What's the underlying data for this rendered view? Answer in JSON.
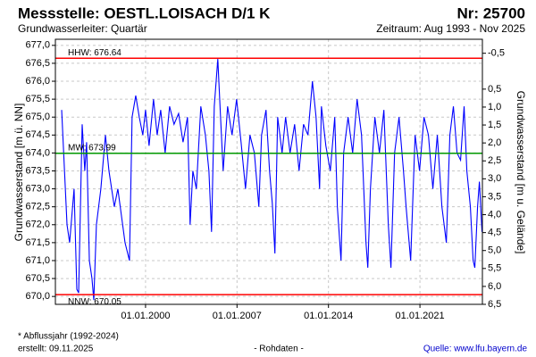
{
  "chart_data": {
    "type": "line",
    "title": "Messstelle: OESTL.LOISACH D/1 K",
    "number": "Nr: 25700",
    "subtitle": "Grundwasserleiter: Quartär",
    "period": "Zeitraum: Aug 1993 - Nov 2025",
    "ylabel": "Grundwasserstand [m ü. NN]",
    "y2label": "Grundwasserstand [m u. Gelände]",
    "footnote": "* Abflussjahr (1992-2024)",
    "created": "erstellt: 09.11.2025",
    "data_note": "- Rohdaten -",
    "source": "Quelle: www.lfu.bayern.de",
    "color": "#0000ff",
    "grid": true,
    "x": [
      1993.58,
      1993.99,
      1994.19,
      1994.53,
      1994.74,
      1994.88,
      1995.15,
      1995.35,
      1995.49,
      1995.7,
      1995.9,
      1996.04,
      1996.24,
      1996.58,
      1996.93,
      1997.2,
      1997.61,
      1997.88,
      1998.43,
      1998.77,
      1998.97,
      1999.25,
      1999.52,
      1999.79,
      2000.0,
      2000.27,
      2000.61,
      2000.89,
      2001.16,
      2001.5,
      2001.84,
      2002.18,
      2002.53,
      2002.87,
      2003.21,
      2003.41,
      2003.62,
      2003.89,
      2004.23,
      2004.58,
      2004.85,
      2005.05,
      2005.26,
      2005.53,
      2005.74,
      2005.94,
      2006.28,
      2006.62,
      2006.97,
      2007.31,
      2007.65,
      2007.99,
      2008.33,
      2008.67,
      2008.88,
      2009.22,
      2009.49,
      2009.7,
      2009.9,
      2010.11,
      2010.45,
      2010.72,
      2011.06,
      2011.41,
      2011.75,
      2012.09,
      2012.43,
      2012.77,
      2013.05,
      2013.32,
      2013.46,
      2013.8,
      2014.14,
      2014.48,
      2014.68,
      2014.96,
      2015.16,
      2015.5,
      2015.85,
      2016.19,
      2016.53,
      2016.87,
      2017.01,
      2017.21,
      2017.55,
      2017.9,
      2018.24,
      2018.58,
      2018.78,
      2019.06,
      2019.4,
      2019.74,
      2019.94,
      2020.29,
      2020.63,
      2020.97,
      2021.31,
      2021.65,
      2021.99,
      2022.33,
      2022.68,
      2023.02,
      2023.29,
      2023.56,
      2023.84,
      2024.11,
      2024.38,
      2024.59,
      2024.86,
      2025.07,
      2025.2,
      2025.41,
      2025.55,
      2025.75
    ],
    "values": [
      675.2,
      672.0,
      671.5,
      673.0,
      670.2,
      670.1,
      674.8,
      673.5,
      674.3,
      671.0,
      670.5,
      669.9,
      672.0,
      673.0,
      674.5,
      673.5,
      672.5,
      673.0,
      671.5,
      671.0,
      675.0,
      675.6,
      675.0,
      674.5,
      675.2,
      674.2,
      675.5,
      674.5,
      675.2,
      674.0,
      675.3,
      674.8,
      675.1,
      674.3,
      675.0,
      672.0,
      673.5,
      673.0,
      675.3,
      674.5,
      673.5,
      671.8,
      675.3,
      676.62,
      675.0,
      673.5,
      675.3,
      674.5,
      675.5,
      674.3,
      673.0,
      674.5,
      674.0,
      672.5,
      674.5,
      675.2,
      673.5,
      672.6,
      671.2,
      675.0,
      674.0,
      675.0,
      674.0,
      674.8,
      673.5,
      674.8,
      674.5,
      676.0,
      675.0,
      673.0,
      675.3,
      674.2,
      673.5,
      675.0,
      672.5,
      671.0,
      674.0,
      675.0,
      674.0,
      675.5,
      674.5,
      671.5,
      670.8,
      673.0,
      675.0,
      674.0,
      675.2,
      672.0,
      670.8,
      674.0,
      675.0,
      673.5,
      672.5,
      671.0,
      674.5,
      673.5,
      675.0,
      674.5,
      673.0,
      674.5,
      672.5,
      671.5,
      674.5,
      675.3,
      674.0,
      673.8,
      675.3,
      673.5,
      672.5,
      671.0,
      670.8,
      672.5,
      673.2,
      671.8
    ],
    "xlim": [
      1993.1,
      2025.78
    ],
    "xticks": [
      {
        "value": 2000,
        "label": "01.01.2000"
      },
      {
        "value": 2007,
        "label": "01.01.2007"
      },
      {
        "value": 2014,
        "label": "01.01.2014"
      },
      {
        "value": 2021,
        "label": "01.01.2021"
      }
    ],
    "ylim": [
      669.78,
      677.17
    ],
    "yticks": [
      {
        "value": 677,
        "label": "677,0"
      },
      {
        "value": 676.5,
        "label": "676,5"
      },
      {
        "value": 676,
        "label": "676,0"
      },
      {
        "value": 675.5,
        "label": "675,5"
      },
      {
        "value": 675,
        "label": "675,0"
      },
      {
        "value": 674.5,
        "label": "674,5"
      },
      {
        "value": 674,
        "label": "674,0"
      },
      {
        "value": 673.5,
        "label": "673,5"
      },
      {
        "value": 673,
        "label": "673,0"
      },
      {
        "value": 672.5,
        "label": "672,5"
      },
      {
        "value": 672,
        "label": "672,0"
      },
      {
        "value": 671.5,
        "label": "671,5"
      },
      {
        "value": 671,
        "label": "671,0"
      },
      {
        "value": 670.5,
        "label": "670,5"
      },
      {
        "value": 670,
        "label": "670,0"
      }
    ],
    "y2lim": [
      6.5,
      -0.89
    ],
    "y2ticks": [
      {
        "value": -0.5,
        "label": "-0,5"
      },
      {
        "value": 0.5,
        "label": "0,5"
      },
      {
        "value": 1,
        "label": "1,0"
      },
      {
        "value": 1.5,
        "label": "1,5"
      },
      {
        "value": 2,
        "label": "2,0"
      },
      {
        "value": 2.5,
        "label": "2,5"
      },
      {
        "value": 3,
        "label": "3,0"
      },
      {
        "value": 3.5,
        "label": "3,5"
      },
      {
        "value": 4,
        "label": "4,0"
      },
      {
        "value": 4.5,
        "label": "4,5"
      },
      {
        "value": 5,
        "label": "5,0"
      },
      {
        "value": 5.5,
        "label": "5,5"
      },
      {
        "value": 6,
        "label": "6,0"
      },
      {
        "value": 6.5,
        "label": "6,5"
      }
    ],
    "reference_lines": [
      {
        "label": "HHW: 676.64",
        "value": 676.64,
        "color": "#ff0000",
        "label_side": "above"
      },
      {
        "label": "MW: 673.99",
        "value": 673.99,
        "color": "#009900",
        "label_side": "above"
      },
      {
        "label": "NNW: 670.05",
        "value": 670.05,
        "color": "#ff0000",
        "label_side": "below"
      }
    ]
  }
}
